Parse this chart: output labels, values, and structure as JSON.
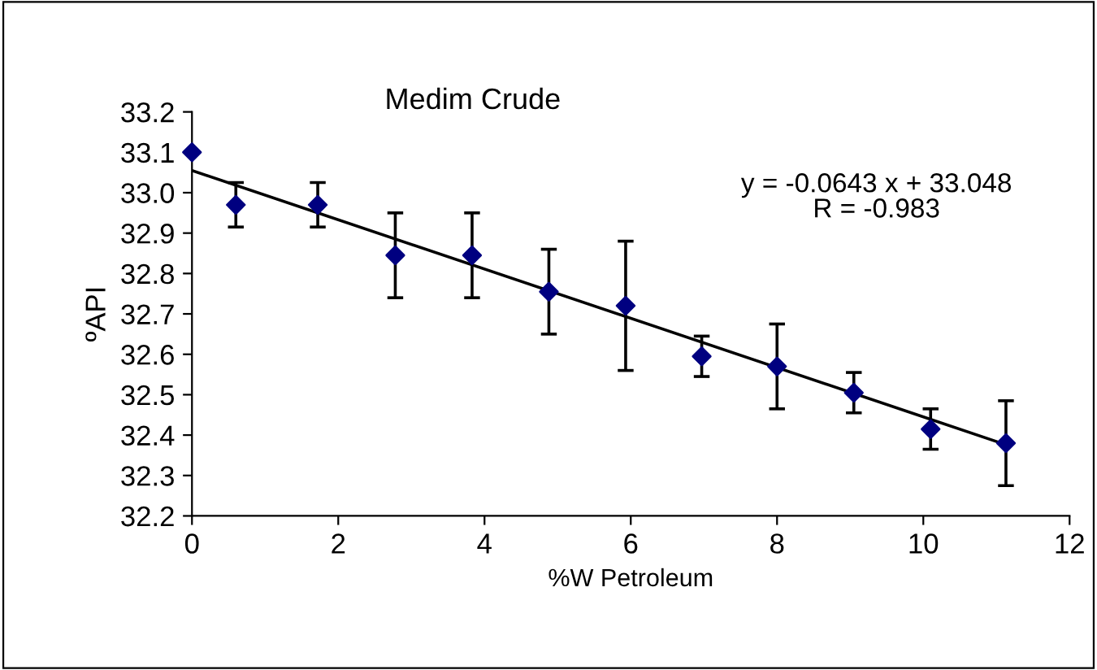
{
  "chart_data": {
    "type": "scatter",
    "title": "Medim Crude",
    "xlabel": "%W Petroleum",
    "ylabel": "ºAPI",
    "annotations": [
      "y = -0.0643 x + 33.048\nR = -0.983"
    ],
    "xlim": [
      0,
      12
    ],
    "xticks": [
      0,
      2,
      4,
      6,
      8,
      10,
      12
    ],
    "ylim": [
      32.2,
      33.2
    ],
    "yticks": [
      {
        "value": 32.2,
        "label": "32.2"
      },
      {
        "value": 32.3,
        "label": "32.3"
      },
      {
        "value": 32.4,
        "label": "32.4"
      },
      {
        "value": 32.5,
        "label": "32.5"
      },
      {
        "value": 32.6,
        "label": "32.6"
      },
      {
        "value": 32.7,
        "label": "32.7"
      },
      {
        "value": 32.8,
        "label": "32.8"
      },
      {
        "value": 32.9,
        "label": "32.9"
      },
      {
        "value": 33.0,
        "label": "33.0"
      },
      {
        "value": 33.1,
        "label": "33.1"
      },
      {
        "value": 33.2,
        "label": "33.2"
      }
    ],
    "grid": false,
    "series": [
      {
        "marker": "diamond",
        "color": "#000080",
        "x": [
          0,
          0.6,
          1.72,
          2.78,
          3.83,
          4.88,
          5.93,
          6.97,
          8.0,
          9.05,
          10.1,
          11.13
        ],
        "values": [
          33.1,
          32.97,
          32.97,
          32.845,
          32.845,
          32.755,
          32.72,
          32.595,
          32.57,
          32.505,
          32.415,
          32.38
        ],
        "errors": [
          null,
          0.055,
          0.055,
          0.105,
          0.105,
          0.105,
          [
            32.56,
            32.88
          ],
          0.05,
          0.105,
          0.05,
          0.05,
          0.105
        ]
      },
      {
        "type": "line",
        "marker": "none",
        "color": "#000000",
        "x": [
          0,
          11.15
        ],
        "values": [
          33.055,
          32.375
        ]
      }
    ]
  }
}
